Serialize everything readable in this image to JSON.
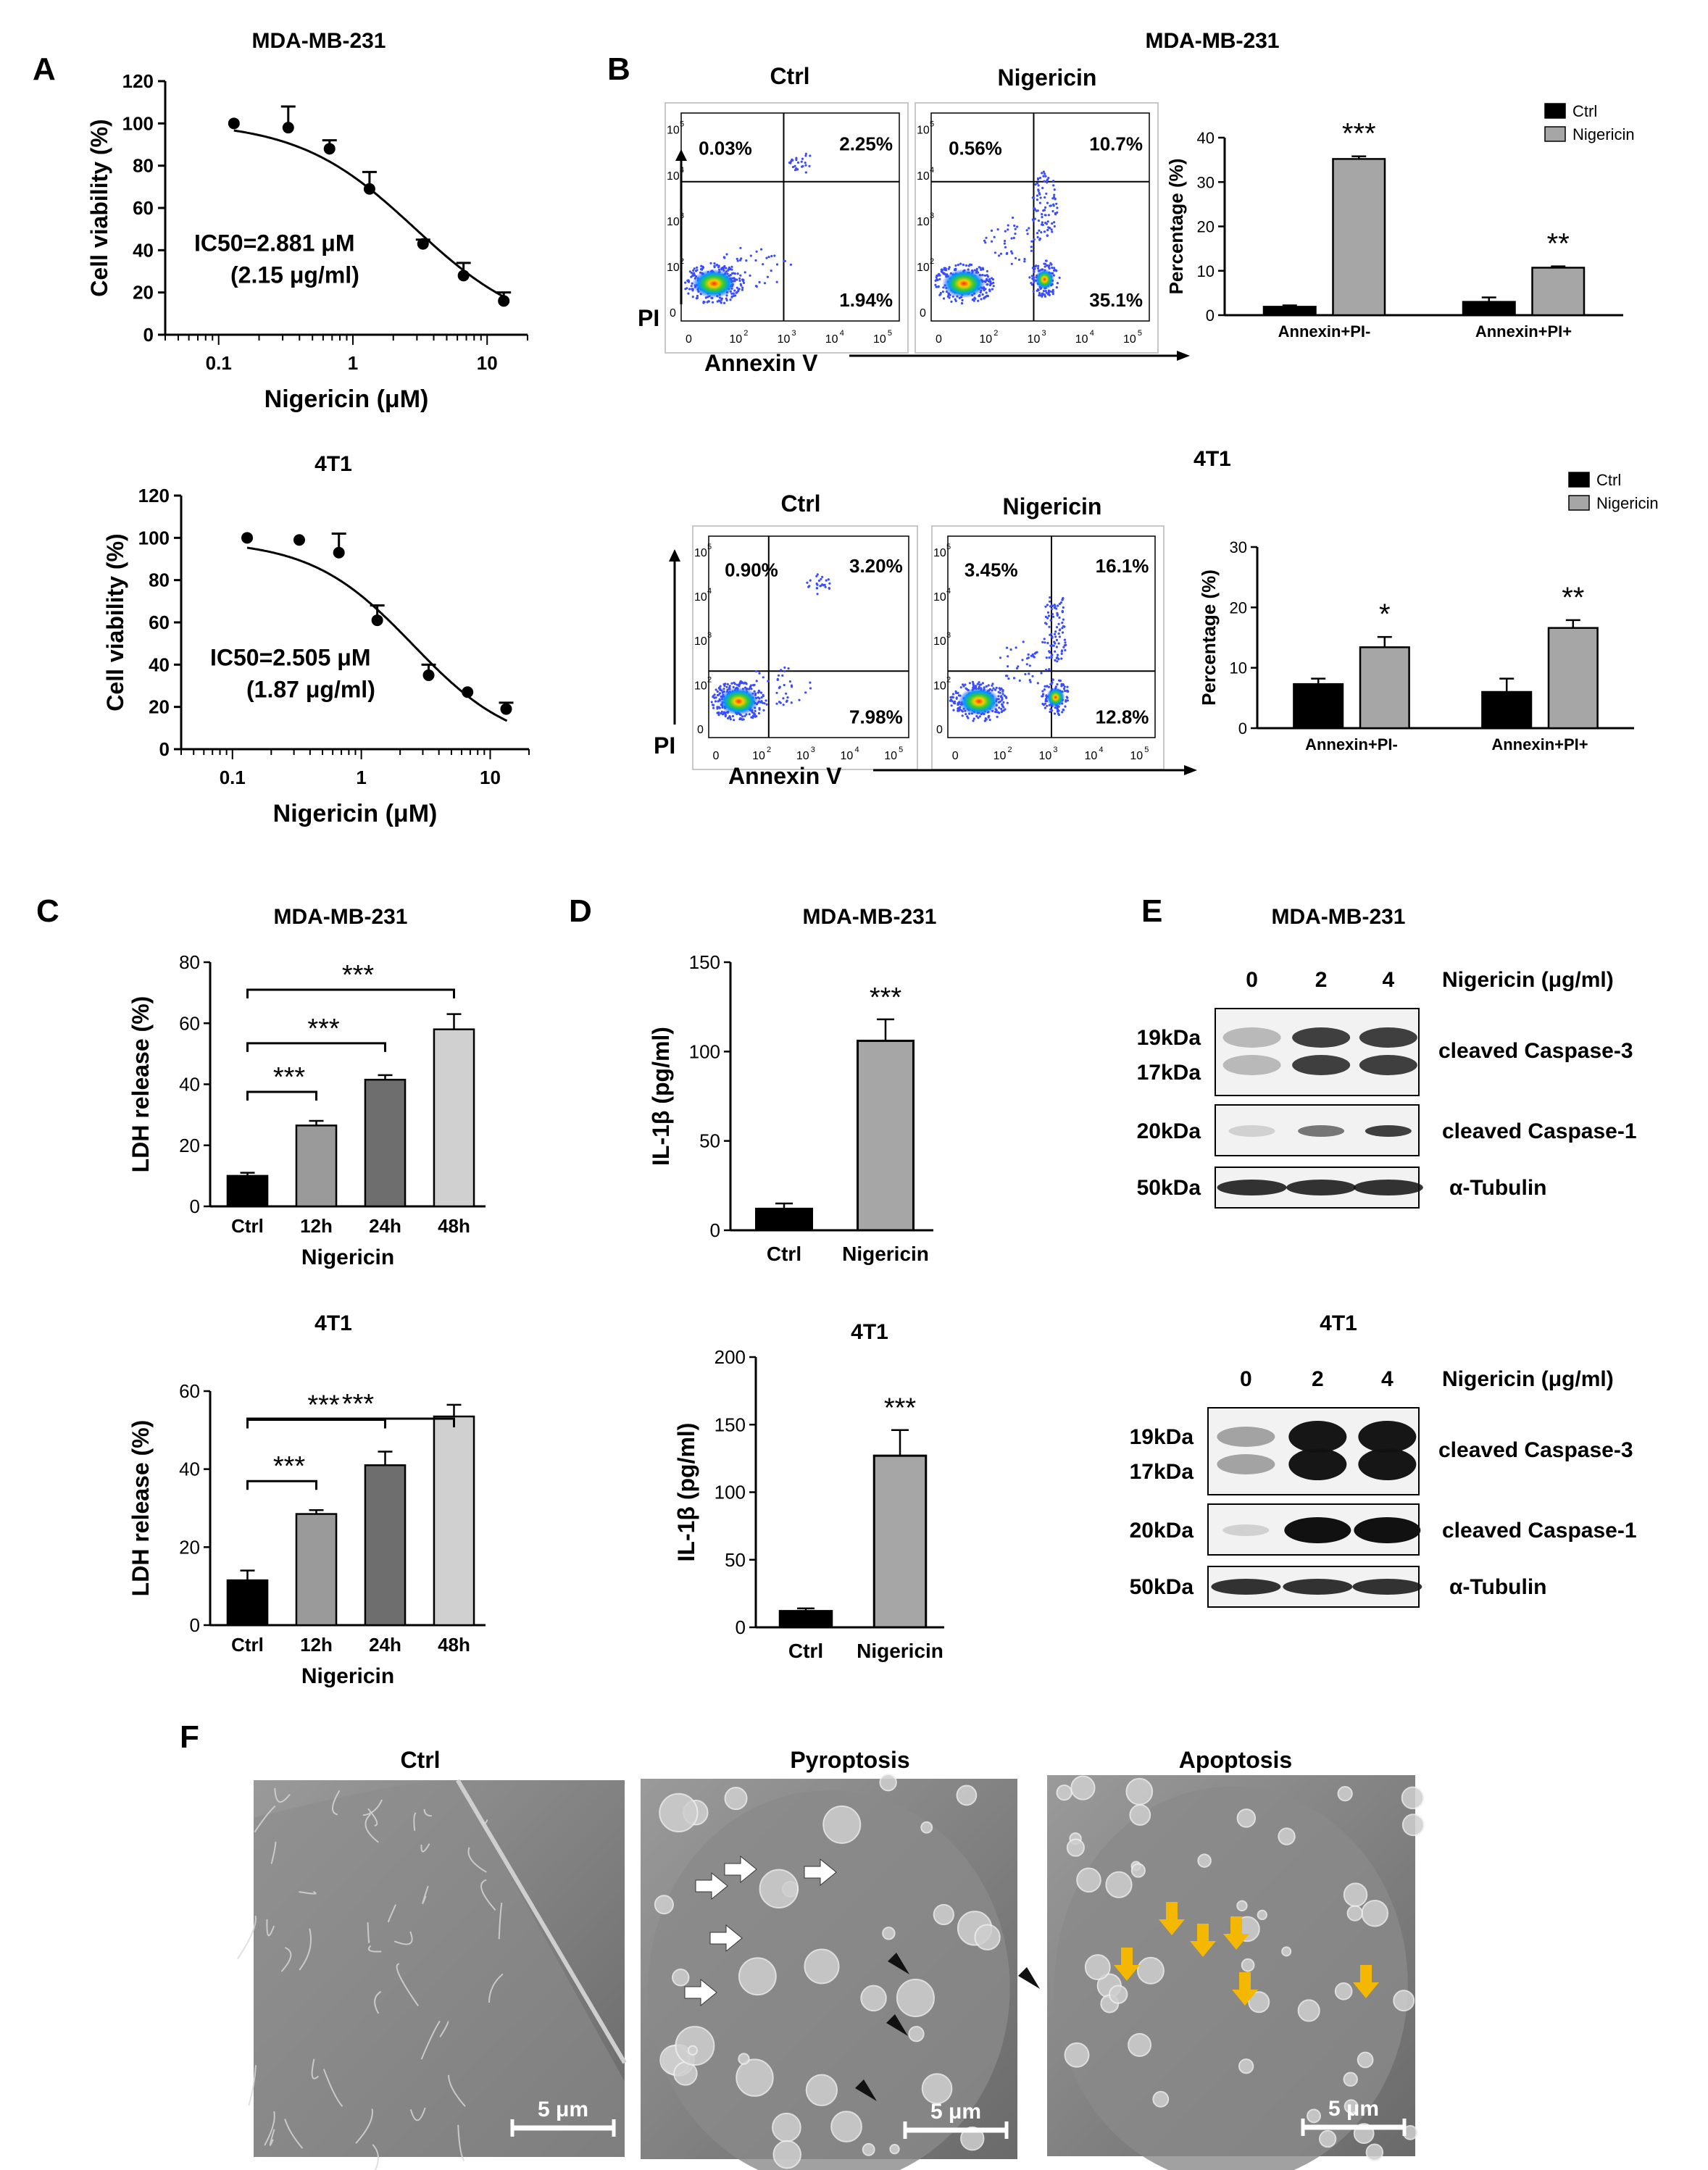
{
  "panel_letters": {
    "A": "A",
    "B": "B",
    "C": "C",
    "D": "D",
    "E": "E",
    "F": "F"
  },
  "chart_data": [
    {
      "id": "A1",
      "type": "scatter",
      "title": "MDA-MB-231",
      "xlabel": "Nigericin (μM)",
      "ylabel": "Cell viability (%)",
      "xscale": "log",
      "xlim": [
        0.04,
        20
      ],
      "ylim": [
        0,
        120
      ],
      "xticks": [
        0.1,
        1,
        10
      ],
      "xtick_labels": [
        "0.1",
        "1",
        "10"
      ],
      "yticks": [
        0,
        20,
        40,
        60,
        80,
        100,
        120
      ],
      "x": [
        0.13,
        0.33,
        0.67,
        1.33,
        3.33,
        6.67,
        13.3
      ],
      "y": [
        100,
        98,
        88,
        69,
        43,
        28,
        16
      ],
      "err": [
        0,
        10,
        4,
        8,
        2,
        6,
        4
      ],
      "fit_ic50": 2.881,
      "fit_hill": 1.0,
      "fit_top": 101,
      "fit_bottom": 0,
      "annotation": [
        "IC50=2.881 μM",
        "(2.15 μg/ml)"
      ]
    },
    {
      "id": "A2",
      "type": "scatter",
      "title": "4T1",
      "xlabel": "Nigericin (μM)",
      "ylabel": "Cell viability (%)",
      "xscale": "log",
      "xlim": [
        0.04,
        20
      ],
      "ylim": [
        0,
        120
      ],
      "xticks": [
        0.1,
        1,
        10
      ],
      "xtick_labels": [
        "0.1",
        "1",
        "10"
      ],
      "yticks": [
        0,
        20,
        40,
        60,
        80,
        100,
        120
      ],
      "x": [
        0.13,
        0.33,
        0.67,
        1.33,
        3.33,
        6.67,
        13.3
      ],
      "y": [
        100,
        99,
        93,
        61,
        35,
        27,
        19
      ],
      "err": [
        0,
        0,
        9,
        7,
        5,
        0,
        3
      ],
      "fit_ic50": 2.505,
      "fit_hill": 1.1,
      "fit_top": 99,
      "fit_bottom": 0,
      "annotation": [
        "IC50=2.505 μM",
        "(1.87 μg/ml)"
      ]
    },
    {
      "id": "B1",
      "type": "bar",
      "title": "MDA-MB-231",
      "ylabel": "Percentage (%)",
      "categories": [
        "Annexin+PI-",
        "Annexin+PI+"
      ],
      "ylim": [
        0,
        40
      ],
      "yticks": [
        0,
        10,
        20,
        30,
        40
      ],
      "series": [
        {
          "name": "Ctrl",
          "values": [
            1.9,
            3.0
          ],
          "err": [
            0.3,
            1.0
          ]
        },
        {
          "name": "Nigericin",
          "values": [
            35.2,
            10.7
          ],
          "err": [
            0.6,
            0.3
          ]
        }
      ],
      "significance": [
        "***",
        "**"
      ],
      "legend": "top-right"
    },
    {
      "id": "B2",
      "type": "bar",
      "title": "4T1",
      "ylabel": "Percentage (%)",
      "categories": [
        "Annexin+PI-",
        "Annexin+PI+"
      ],
      "ylim": [
        0,
        30
      ],
      "yticks": [
        0,
        10,
        20,
        30
      ],
      "series": [
        {
          "name": "Ctrl",
          "values": [
            7.3,
            6.0
          ],
          "err": [
            0.9,
            2.2
          ]
        },
        {
          "name": "Nigericin",
          "values": [
            13.4,
            16.6
          ],
          "err": [
            1.7,
            1.3
          ]
        }
      ],
      "significance": [
        "*",
        "**"
      ],
      "legend": "top-right"
    },
    {
      "id": "C1",
      "type": "bar",
      "title": "MDA-MB-231",
      "ylabel": "LDH release  (%)",
      "xlabel": "Nigericin",
      "categories": [
        "Ctrl",
        "12h",
        "24h",
        "48h"
      ],
      "values": [
        10,
        26.5,
        41.5,
        58
      ],
      "err": [
        1,
        1.5,
        1.5,
        5
      ],
      "ylim": [
        0,
        80
      ],
      "yticks": [
        0,
        20,
        40,
        60,
        80
      ],
      "significance": [
        "***",
        "***",
        "***"
      ]
    },
    {
      "id": "C2",
      "type": "bar",
      "title": "4T1",
      "ylabel": "LDH release  (%)",
      "xlabel": "Nigericin",
      "categories": [
        "Ctrl",
        "12h",
        "24h",
        "48h"
      ],
      "values": [
        11.5,
        28.5,
        41,
        53.5
      ],
      "err": [
        2.5,
        1,
        3.5,
        3
      ],
      "ylim": [
        0,
        60
      ],
      "yticks": [
        0,
        20,
        40,
        60
      ],
      "significance": [
        "***",
        "***",
        "***"
      ]
    },
    {
      "id": "D1",
      "type": "bar",
      "title": "MDA-MB-231",
      "ylabel": "IL-1β (pg/ml)",
      "categories": [
        "Ctrl",
        "Nigericin"
      ],
      "values": [
        12,
        106
      ],
      "err": [
        3,
        12
      ],
      "ylim": [
        0,
        150
      ],
      "yticks": [
        0,
        50,
        100,
        150
      ],
      "significance": "***"
    },
    {
      "id": "D2",
      "type": "bar",
      "title": "4T1",
      "ylabel": "IL-1β (pg/ml)",
      "categories": [
        "Ctrl",
        "Nigericin"
      ],
      "values": [
        12,
        127
      ],
      "err": [
        2,
        19
      ],
      "ylim": [
        0,
        200
      ],
      "yticks": [
        0,
        50,
        100,
        150,
        200
      ],
      "significance": "***"
    }
  ],
  "flow": {
    "mda_title": "MDA-MB-231",
    "t1_title": "4T1",
    "ctrl_label": "Ctrl",
    "nig_label": "Nigericin",
    "x_axis": "Annexin V",
    "y_axis": "PI",
    "mda_ctrl_q": [
      "0.03%",
      "2.25%",
      "1.94%"
    ],
    "mda_nig_q": [
      "0.56%",
      "10.7%",
      "35.1%"
    ],
    "t1_ctrl_q": [
      "0.90%",
      "3.20%",
      "7.98%"
    ],
    "t1_nig_q": [
      "3.45%",
      "16.1%",
      "12.8%"
    ],
    "tick_labels": [
      "0",
      "10",
      "2",
      "3",
      "4",
      "5"
    ]
  },
  "blots": {
    "mda_title": "MDA-MB-231",
    "t1_title": "4T1",
    "lanes": [
      "0",
      "2",
      "4"
    ],
    "conc_label": "Nigericin (μg/ml)",
    "labels": [
      "cleaved Caspase-3",
      "cleaved Caspase-1",
      "α-Tubulin"
    ],
    "kda": [
      "19kDa",
      "17kDa",
      "20kDa",
      "50kDa"
    ]
  },
  "sem": {
    "titles": [
      "Ctrl",
      "Pyroptosis",
      "Apoptosis"
    ],
    "scale_label": "5 μm",
    "arrow_colors": {
      "white": "#ffffff",
      "black": "#111111",
      "orange": "#f5b800"
    }
  }
}
